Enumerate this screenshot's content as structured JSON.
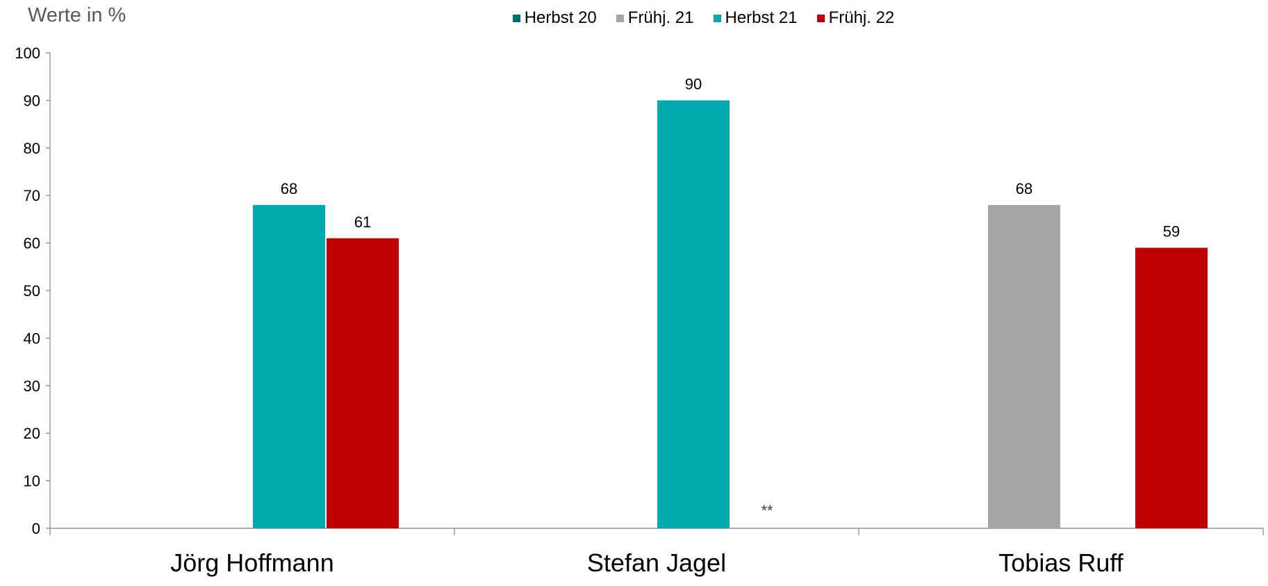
{
  "chart_data": {
    "type": "bar",
    "unit_label": "Werte in %",
    "categories": [
      "Jörg Hoffmann",
      "Stefan Jagel",
      "Tobias Ruff"
    ],
    "series": [
      {
        "name": "Herbst 20",
        "color": "#00706B",
        "values": [
          null,
          null,
          null
        ],
        "labels": [
          "",
          "",
          ""
        ]
      },
      {
        "name": "Frühj. 21",
        "color": "#A6A6A6",
        "values": [
          null,
          null,
          68
        ],
        "labels": [
          "",
          "",
          "68"
        ]
      },
      {
        "name": "Herbst 21",
        "color": "#00A9AD",
        "values": [
          68,
          90,
          null
        ],
        "labels": [
          "68",
          "90",
          ""
        ]
      },
      {
        "name": "Frühj. 22",
        "color": "#C00000",
        "values": [
          61,
          null,
          59
        ],
        "labels": [
          "61",
          "**",
          "59"
        ]
      }
    ],
    "y_ticks": [
      "0",
      "10",
      "20",
      "30",
      "40",
      "50",
      "60",
      "70",
      "80",
      "90",
      "100"
    ],
    "ylim": [
      0,
      100
    ],
    "legend_position": "top-center",
    "grid": false
  }
}
